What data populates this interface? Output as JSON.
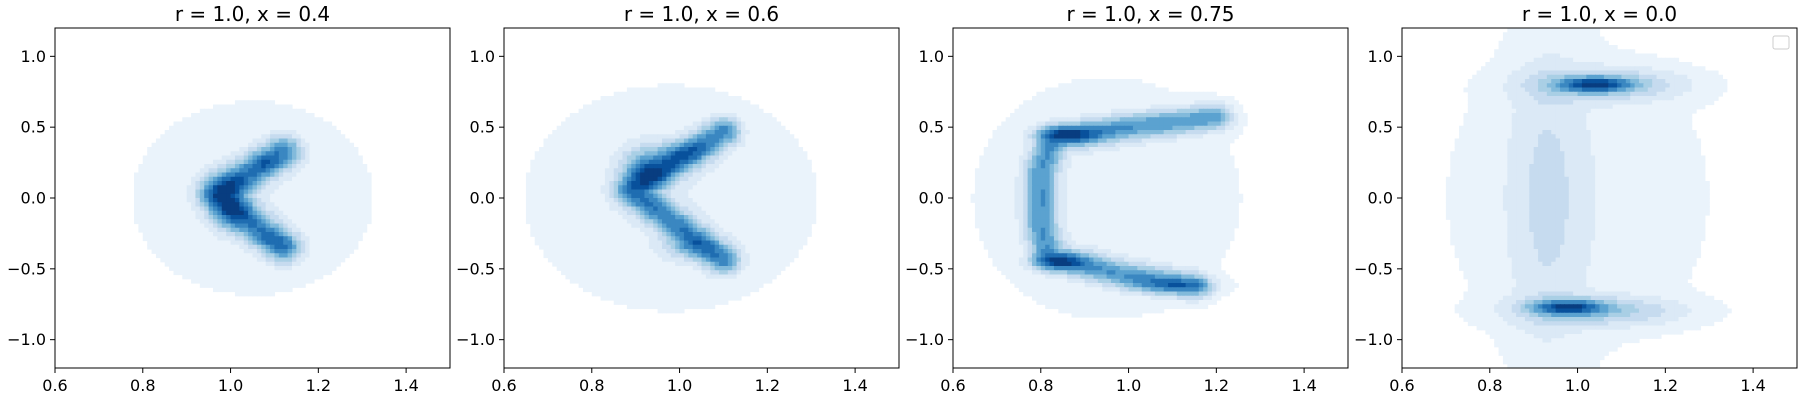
{
  "colors": {
    "levels": [
      "#f7fbff",
      "#eaf3fb",
      "#dbe9f6",
      "#c6dbef",
      "#a9cfe5",
      "#82badb",
      "#5ba2d0",
      "#3a87c1",
      "#1f6db1",
      "#08519c",
      "#083d80"
    ]
  },
  "chart_data": [
    {
      "type": "contour",
      "title": "r = 1.0, x = 0.4",
      "xlim": [
        0.6,
        1.5
      ],
      "ylim": [
        -1.2,
        1.2
      ],
      "xticks": [
        "0.6",
        "0.8",
        "1.0",
        "1.2",
        "1.4"
      ],
      "yticks": [
        "1.0",
        "0.5",
        "0.0",
        "−0.5",
        "−1.0"
      ],
      "legend": false,
      "density_shape": "V-shaped ridge, vertex at (0.97, 0.0), arms to (1.12, 0.32) and (1.12, -0.34)",
      "peak_locations": [
        [
          0.99,
          0.06
        ],
        [
          1.0,
          -0.12
        ],
        [
          1.08,
          0.25
        ],
        [
          1.1,
          -0.3
        ]
      ]
    },
    {
      "type": "contour",
      "title": "r = 1.0, x = 0.6",
      "xlim": [
        0.6,
        1.5
      ],
      "ylim": [
        -1.2,
        1.2
      ],
      "xticks": [
        "0.6",
        "0.8",
        "1.0",
        "1.2",
        "1.4"
      ],
      "yticks": [
        "1.0",
        "0.5",
        "0.0",
        "−0.5",
        "−1.0"
      ],
      "legend": false,
      "density_shape": "V-shaped ridge, vertex at (0.89, 0.05), arms to (1.1, 0.45) and (1.1, -0.42)",
      "peak_locations": [
        [
          0.92,
          0.2
        ],
        [
          0.98,
          0.3
        ],
        [
          0.9,
          0.05
        ],
        [
          1.02,
          -0.35
        ]
      ]
    },
    {
      "type": "contour",
      "title": "r = 1.0, x = 0.75",
      "xlim": [
        0.6,
        1.5
      ],
      "ylim": [
        -1.2,
        1.2
      ],
      "xticks": [
        "0.6",
        "0.8",
        "1.0",
        "1.2",
        "1.4"
      ],
      "yticks": [
        "1.0",
        "0.5",
        "0.0",
        "−0.5",
        "−1.0"
      ],
      "legend": false,
      "density_shape": "C-shaped band, vertical segment near x=0.8, arms along y=0.45 and y=-0.5",
      "peak_locations": [
        [
          0.85,
          0.44
        ],
        [
          0.84,
          -0.45
        ],
        [
          1.1,
          -0.62
        ]
      ]
    },
    {
      "type": "contour",
      "title": "r = 1.0, x = 0.0",
      "xlim": [
        0.6,
        1.5
      ],
      "ylim": [
        -1.2,
        1.2
      ],
      "xticks": [
        "0.6",
        "0.8",
        "1.0",
        "1.2",
        "1.4"
      ],
      "yticks": [
        "1.0",
        "0.5",
        "0.0",
        "−0.5",
        "−1.0"
      ],
      "legend": true,
      "density_shape": "two blobs at (1.04, 0.8) and (0.98, -0.77) joined by faint vertical band near x=0.92",
      "peak_locations": [
        [
          1.04,
          0.8
        ],
        [
          0.98,
          -0.77
        ]
      ]
    }
  ]
}
